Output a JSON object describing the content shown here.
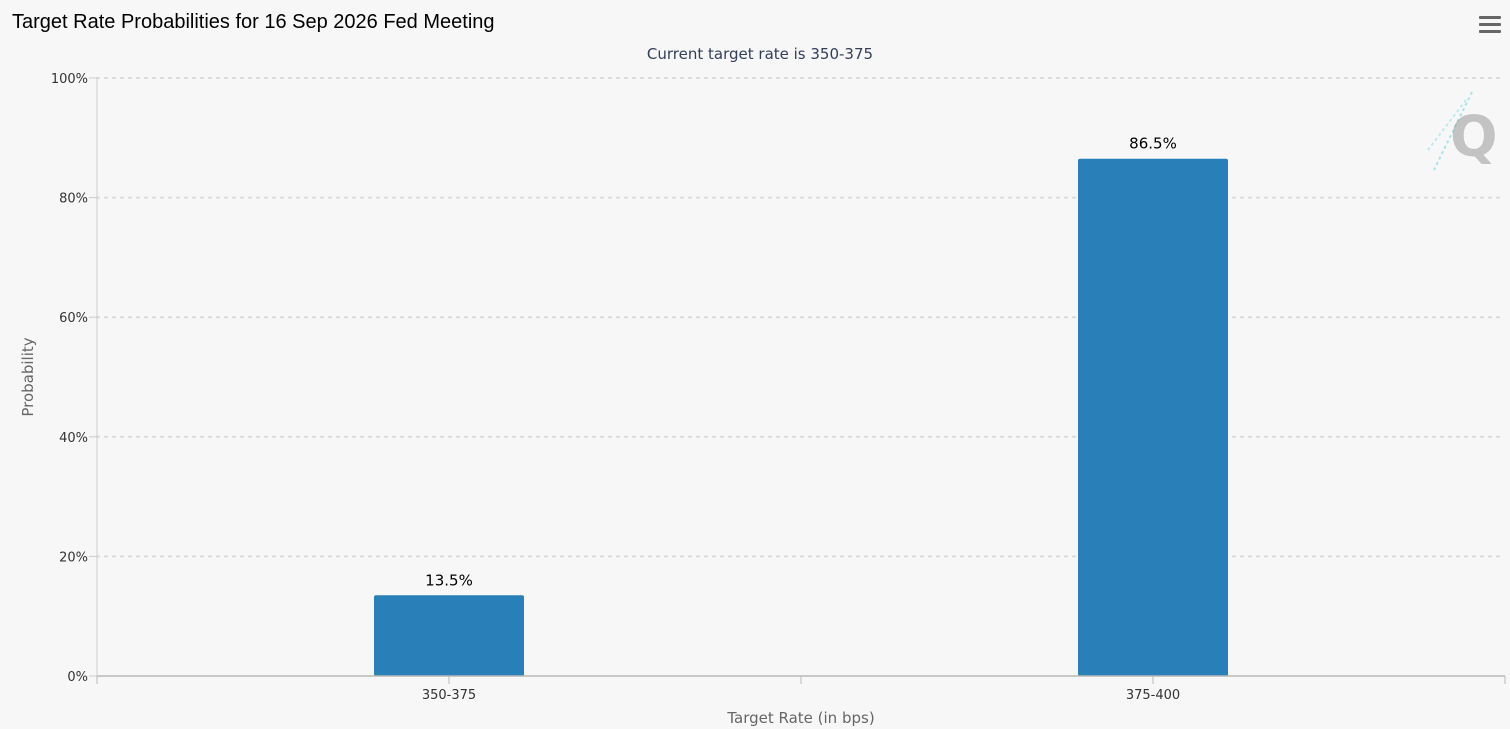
{
  "page": {
    "title": "Target Rate Probabilities for 16 Sep 2026 Fed Meeting",
    "menu_icon": "hamburger-menu-icon",
    "watermark_icon": "quikstrike-q-logo-icon"
  },
  "colors": {
    "bar": "#2980b9",
    "background": "#f7f7f7",
    "grid": "#d8d8d8",
    "axis_text": "#333333",
    "subtitle": "#333e58"
  },
  "chart_data": {
    "type": "bar",
    "title": "Target Rate Probabilities for 16 Sep 2026 Fed Meeting",
    "subtitle": "Current target rate is 350-375",
    "xlabel": "Target Rate (in bps)",
    "ylabel": "Probability",
    "categories": [
      "350-375",
      "375-400"
    ],
    "values": [
      13.5,
      86.5
    ],
    "data_labels": [
      "13.5%",
      "86.5%"
    ],
    "ylim": [
      0,
      100
    ],
    "yticks": [
      0,
      20,
      40,
      60,
      80,
      100
    ],
    "ytick_labels": [
      "0%",
      "20%",
      "40%",
      "60%",
      "80%",
      "100%"
    ],
    "grid": true,
    "legend": "none"
  }
}
